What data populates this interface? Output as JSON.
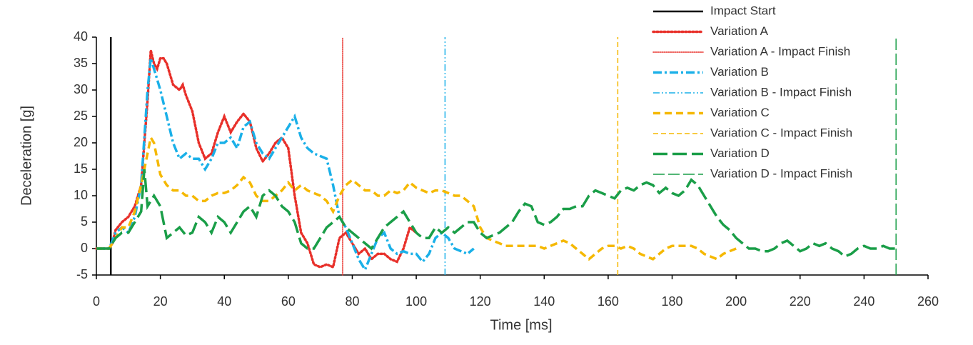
{
  "chart_data": {
    "type": "line",
    "xlabel": "Time [ms]",
    "ylabel": "Deceleration [g]",
    "xlim": [
      0,
      260
    ],
    "xticks": [
      0,
      20,
      40,
      60,
      80,
      100,
      120,
      140,
      160,
      180,
      200,
      220,
      240,
      260
    ],
    "ylim": [
      -5,
      40
    ],
    "yticks": [
      -5,
      0,
      5,
      10,
      15,
      20,
      25,
      30,
      35,
      40
    ],
    "legend": "top right",
    "series": [
      {
        "name": "Impact Start",
        "color": "#000000",
        "style": "solid",
        "weight": "medium",
        "x": [
          4.5,
          4.5
        ],
        "values": [
          -5,
          40
        ]
      },
      {
        "name": "Variation A",
        "color": "#e8302a",
        "style": "dotted",
        "weight": "thick",
        "x": [
          0,
          4,
          5,
          6,
          8,
          10,
          12,
          14,
          16,
          17,
          18,
          19,
          20,
          21,
          22,
          24,
          26,
          27,
          28,
          30,
          32,
          34,
          36,
          38,
          40,
          42,
          44,
          46,
          48,
          50,
          52,
          54,
          56,
          58,
          60,
          62,
          64,
          66,
          68,
          70,
          72,
          74,
          76,
          78,
          80,
          82,
          84,
          86,
          88,
          90,
          92,
          94,
          96,
          98,
          100
        ],
        "values": [
          0,
          0,
          1,
          3.5,
          5,
          6,
          8,
          12,
          28,
          37.5,
          35,
          34,
          36,
          36,
          35,
          31,
          30,
          31,
          29,
          26,
          20,
          17,
          18,
          22,
          25,
          22,
          24,
          25.5,
          24,
          19,
          16.5,
          18,
          20,
          21,
          19,
          10,
          3,
          1,
          -3,
          -3.5,
          -3,
          -3.5,
          2,
          3,
          1,
          -1,
          0,
          -2,
          -1,
          -1,
          -2,
          -2.5,
          0,
          4,
          3
        ]
      },
      {
        "name": "Variation A - Impact Finish",
        "color": "#e8302a",
        "style": "dotted",
        "weight": "thin",
        "x": [
          77,
          77
        ],
        "values": [
          -5,
          40
        ]
      },
      {
        "name": "Variation B",
        "color": "#1ab0e8",
        "style": "dash-dot",
        "weight": "thick",
        "x": [
          0,
          4,
          6,
          8,
          10,
          12,
          14,
          16,
          17,
          18,
          20,
          22,
          24,
          26,
          28,
          30,
          32,
          34,
          36,
          38,
          40,
          42,
          44,
          46,
          48,
          50,
          52,
          54,
          56,
          58,
          60,
          62,
          64,
          66,
          68,
          70,
          72,
          74,
          76,
          78,
          80,
          82,
          84,
          86,
          88,
          90,
          92,
          94,
          96,
          98,
          100,
          102,
          104,
          106,
          108,
          110,
          112,
          114,
          116,
          118
        ],
        "values": [
          0,
          0,
          3,
          4,
          3,
          6,
          12,
          30,
          36,
          34,
          30,
          25,
          20,
          17,
          18,
          17,
          17,
          15,
          17,
          20,
          20,
          21,
          19,
          23,
          24,
          20,
          18,
          17,
          19,
          21,
          23,
          25,
          21,
          19,
          18,
          17.5,
          17,
          12,
          6,
          4,
          1,
          -2,
          -4,
          -1,
          2,
          3,
          0,
          -1,
          -0.5,
          -1,
          -1,
          -2.5,
          -1,
          2,
          3,
          2,
          0,
          -0.5,
          -1,
          0
        ]
      },
      {
        "name": "Variation B - Impact Finish",
        "color": "#1ab0e8",
        "style": "dash-dot-dot",
        "weight": "thin",
        "x": [
          109,
          109
        ],
        "values": [
          -5,
          40
        ]
      },
      {
        "name": "Variation C",
        "color": "#f5b800",
        "style": "dash",
        "weight": "thick",
        "x": [
          0,
          4,
          6,
          8,
          10,
          12,
          14,
          16,
          17,
          18,
          20,
          22,
          24,
          26,
          28,
          30,
          32,
          34,
          36,
          38,
          40,
          42,
          44,
          46,
          48,
          50,
          52,
          54,
          56,
          58,
          60,
          62,
          64,
          66,
          68,
          70,
          72,
          74,
          76,
          78,
          80,
          82,
          84,
          86,
          88,
          90,
          92,
          94,
          96,
          98,
          100,
          102,
          104,
          106,
          108,
          110,
          112,
          114,
          116,
          118,
          120,
          122,
          124,
          126,
          128,
          130,
          132,
          134,
          136,
          138,
          140,
          142,
          144,
          146,
          148,
          150,
          152,
          154,
          156,
          158,
          160,
          162,
          164,
          166,
          168,
          170,
          172,
          174,
          176,
          178,
          180,
          182,
          184,
          186,
          188,
          190,
          192,
          194,
          196,
          198,
          200
        ],
        "values": [
          0,
          0,
          2,
          4,
          4,
          7,
          12,
          18,
          21,
          20,
          14,
          12,
          11,
          11,
          10,
          10,
          9,
          9,
          10,
          10.5,
          10.5,
          11,
          12,
          13.5,
          12.5,
          10,
          9,
          9,
          10,
          11,
          12.5,
          11,
          12,
          11,
          10.5,
          10,
          9,
          7,
          10,
          12,
          13,
          12,
          11,
          11,
          10,
          10,
          11,
          10.5,
          11,
          12.5,
          11.5,
          11,
          10.5,
          11,
          11,
          10.5,
          10,
          10,
          9,
          8,
          4,
          2,
          1.5,
          1,
          0.5,
          0.5,
          0.5,
          0.5,
          0.5,
          0.5,
          0,
          0.5,
          1,
          1.5,
          1,
          0,
          -1,
          -2,
          -1,
          0,
          0.5,
          0.5,
          0,
          0.5,
          0,
          -1,
          -1.5,
          -2,
          -1,
          0,
          0.5,
          0.5,
          0.5,
          0.5,
          0,
          -1,
          -1.5,
          -2,
          -1,
          -0.5,
          0
        ]
      },
      {
        "name": "Variation C - Impact Finish",
        "color": "#f5b800",
        "style": "dash",
        "weight": "thin",
        "x": [
          163,
          163
        ],
        "values": [
          -5,
          40
        ]
      },
      {
        "name": "Variation D",
        "color": "#1a9e48",
        "style": "long-dash",
        "weight": "thick",
        "x": [
          0,
          4,
          6,
          8,
          10,
          12,
          14,
          15,
          16,
          18,
          20,
          22,
          24,
          26,
          28,
          30,
          32,
          34,
          36,
          38,
          40,
          42,
          44,
          46,
          48,
          50,
          52,
          54,
          56,
          58,
          60,
          62,
          64,
          66,
          68,
          70,
          72,
          74,
          76,
          78,
          80,
          82,
          84,
          86,
          88,
          90,
          92,
          94,
          96,
          98,
          100,
          102,
          104,
          106,
          108,
          110,
          112,
          114,
          116,
          118,
          120,
          122,
          124,
          126,
          128,
          130,
          132,
          134,
          136,
          138,
          140,
          142,
          144,
          146,
          148,
          150,
          152,
          154,
          156,
          158,
          160,
          162,
          164,
          166,
          168,
          170,
          172,
          174,
          176,
          178,
          180,
          182,
          184,
          186,
          188,
          190,
          192,
          194,
          196,
          198,
          200,
          202,
          204,
          206,
          208,
          210,
          212,
          214,
          216,
          218,
          220,
          222,
          224,
          226,
          228,
          230,
          232,
          234,
          236,
          238,
          240,
          242,
          244,
          246,
          248,
          250
        ],
        "values": [
          0,
          0,
          2,
          3,
          3,
          5,
          7,
          15,
          8,
          10,
          8,
          2,
          3,
          4,
          2.5,
          3,
          6,
          5,
          3,
          6,
          5,
          3,
          5,
          7,
          8,
          6,
          10,
          11,
          10,
          8,
          7,
          5,
          1,
          0,
          0,
          2,
          4,
          5,
          6,
          4,
          3,
          2,
          1,
          0,
          2,
          4,
          5,
          6,
          7,
          5,
          3,
          2,
          2,
          4,
          3,
          4,
          3,
          4,
          5,
          5,
          3,
          2,
          2.5,
          3,
          4,
          5,
          7,
          8.5,
          8,
          5,
          4.5,
          5,
          6,
          7.5,
          7.5,
          8,
          8,
          10,
          11,
          10.5,
          10,
          9.5,
          11,
          11.5,
          11,
          12,
          12.5,
          12,
          10.5,
          11.5,
          10.5,
          10,
          11,
          13,
          12,
          10,
          8,
          6,
          4.5,
          3.5,
          2,
          1,
          0,
          0,
          -0.5,
          -0.5,
          0,
          1,
          1.5,
          0.5,
          -0.5,
          0,
          1,
          0.5,
          1,
          0,
          -0.5,
          -1.5,
          -1,
          0,
          0.5,
          0,
          0,
          0.5,
          0,
          0
        ]
      },
      {
        "name": "Variation D - Impact Finish",
        "color": "#1a9e48",
        "style": "long-dash",
        "weight": "thin",
        "x": [
          250,
          250
        ],
        "values": [
          -5,
          40
        ]
      }
    ]
  }
}
